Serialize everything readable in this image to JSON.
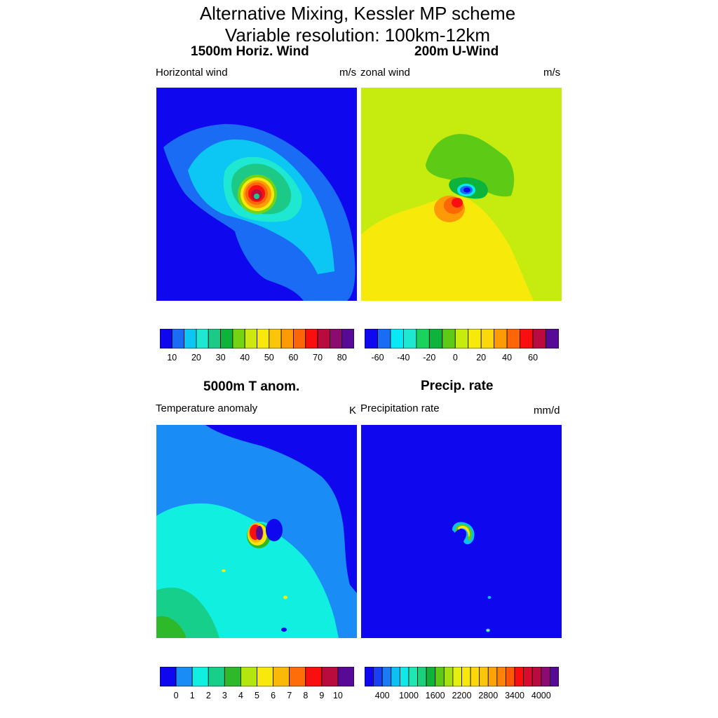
{
  "figure": {
    "title_line1": "Alternative Mixing, Kessler MP scheme",
    "title_line2": "Variable resolution: 100km-12km"
  },
  "chart_data": [
    {
      "type": "heatmap",
      "title": "1500m Horiz. Wind",
      "left_label": "Horizontal wind",
      "units": "m/s",
      "colors": [
        "#0f08ef",
        "#1a6cf5",
        "#0cc6f3",
        "#1ee7d2",
        "#1dc986",
        "#0db33b",
        "#74d313",
        "#cbe911",
        "#f8e80c",
        "#fbc50a",
        "#fe9a06",
        "#fe6508",
        "#f90f0f",
        "#ba0b3f",
        "#8b0b70",
        "#560a96"
      ],
      "tick_labels": [
        "10",
        "20",
        "30",
        "40",
        "50",
        "60",
        "70",
        "80"
      ],
      "background_value": 0
    },
    {
      "type": "heatmap",
      "title": "200m U-Wind",
      "left_label": "zonal wind",
      "units": "m/s",
      "colors": [
        "#0f08ef",
        "#1a6cf5",
        "#09e8f5",
        "#1ee7d2",
        "#1ad35d",
        "#0db33b",
        "#5dcb16",
        "#c6eb0e",
        "#f7ea0a",
        "#fcd70c",
        "#fe9a06",
        "#fe6508",
        "#f90f0f",
        "#ba0b3f",
        "#560a96"
      ],
      "tick_labels": [
        "-60",
        "-40",
        "-20",
        "0",
        "20",
        "40",
        "60"
      ],
      "background_value": 0
    },
    {
      "type": "heatmap",
      "title": "5000m T anom.",
      "left_label": "Temperature anomaly",
      "units": "K",
      "colors": [
        "#0f08ef",
        "#1a8cf5",
        "#11efe0",
        "#16cf8a",
        "#2eb92a",
        "#b2e60d",
        "#f8e80c",
        "#fbb807",
        "#fe6d08",
        "#f90f0f",
        "#ba0b3f",
        "#560a96"
      ],
      "tick_labels": [
        "0",
        "1",
        "2",
        "3",
        "4",
        "5",
        "6",
        "7",
        "8",
        "9",
        "10"
      ],
      "background_value": 0
    },
    {
      "type": "heatmap",
      "title": "Precip. rate",
      "left_label": "Precipitation rate",
      "units": "mm/d",
      "colors": [
        "#0f08ef",
        "#1a40f5",
        "#1a7cf5",
        "#0cc0f3",
        "#11e8e8",
        "#1ee7b2",
        "#1dd07e",
        "#0db33b",
        "#5dcb16",
        "#a7e011",
        "#e4f10c",
        "#f8e80c",
        "#fcd70c",
        "#fbc50a",
        "#fea306",
        "#fe8206",
        "#fe5808",
        "#f90f0f",
        "#d90b2e",
        "#ba0b3f",
        "#8b0b70",
        "#560a96"
      ],
      "tick_labels": [
        "400",
        "1000",
        "1600",
        "2200",
        "2800",
        "3400",
        "4000"
      ],
      "background_value": 0
    }
  ]
}
